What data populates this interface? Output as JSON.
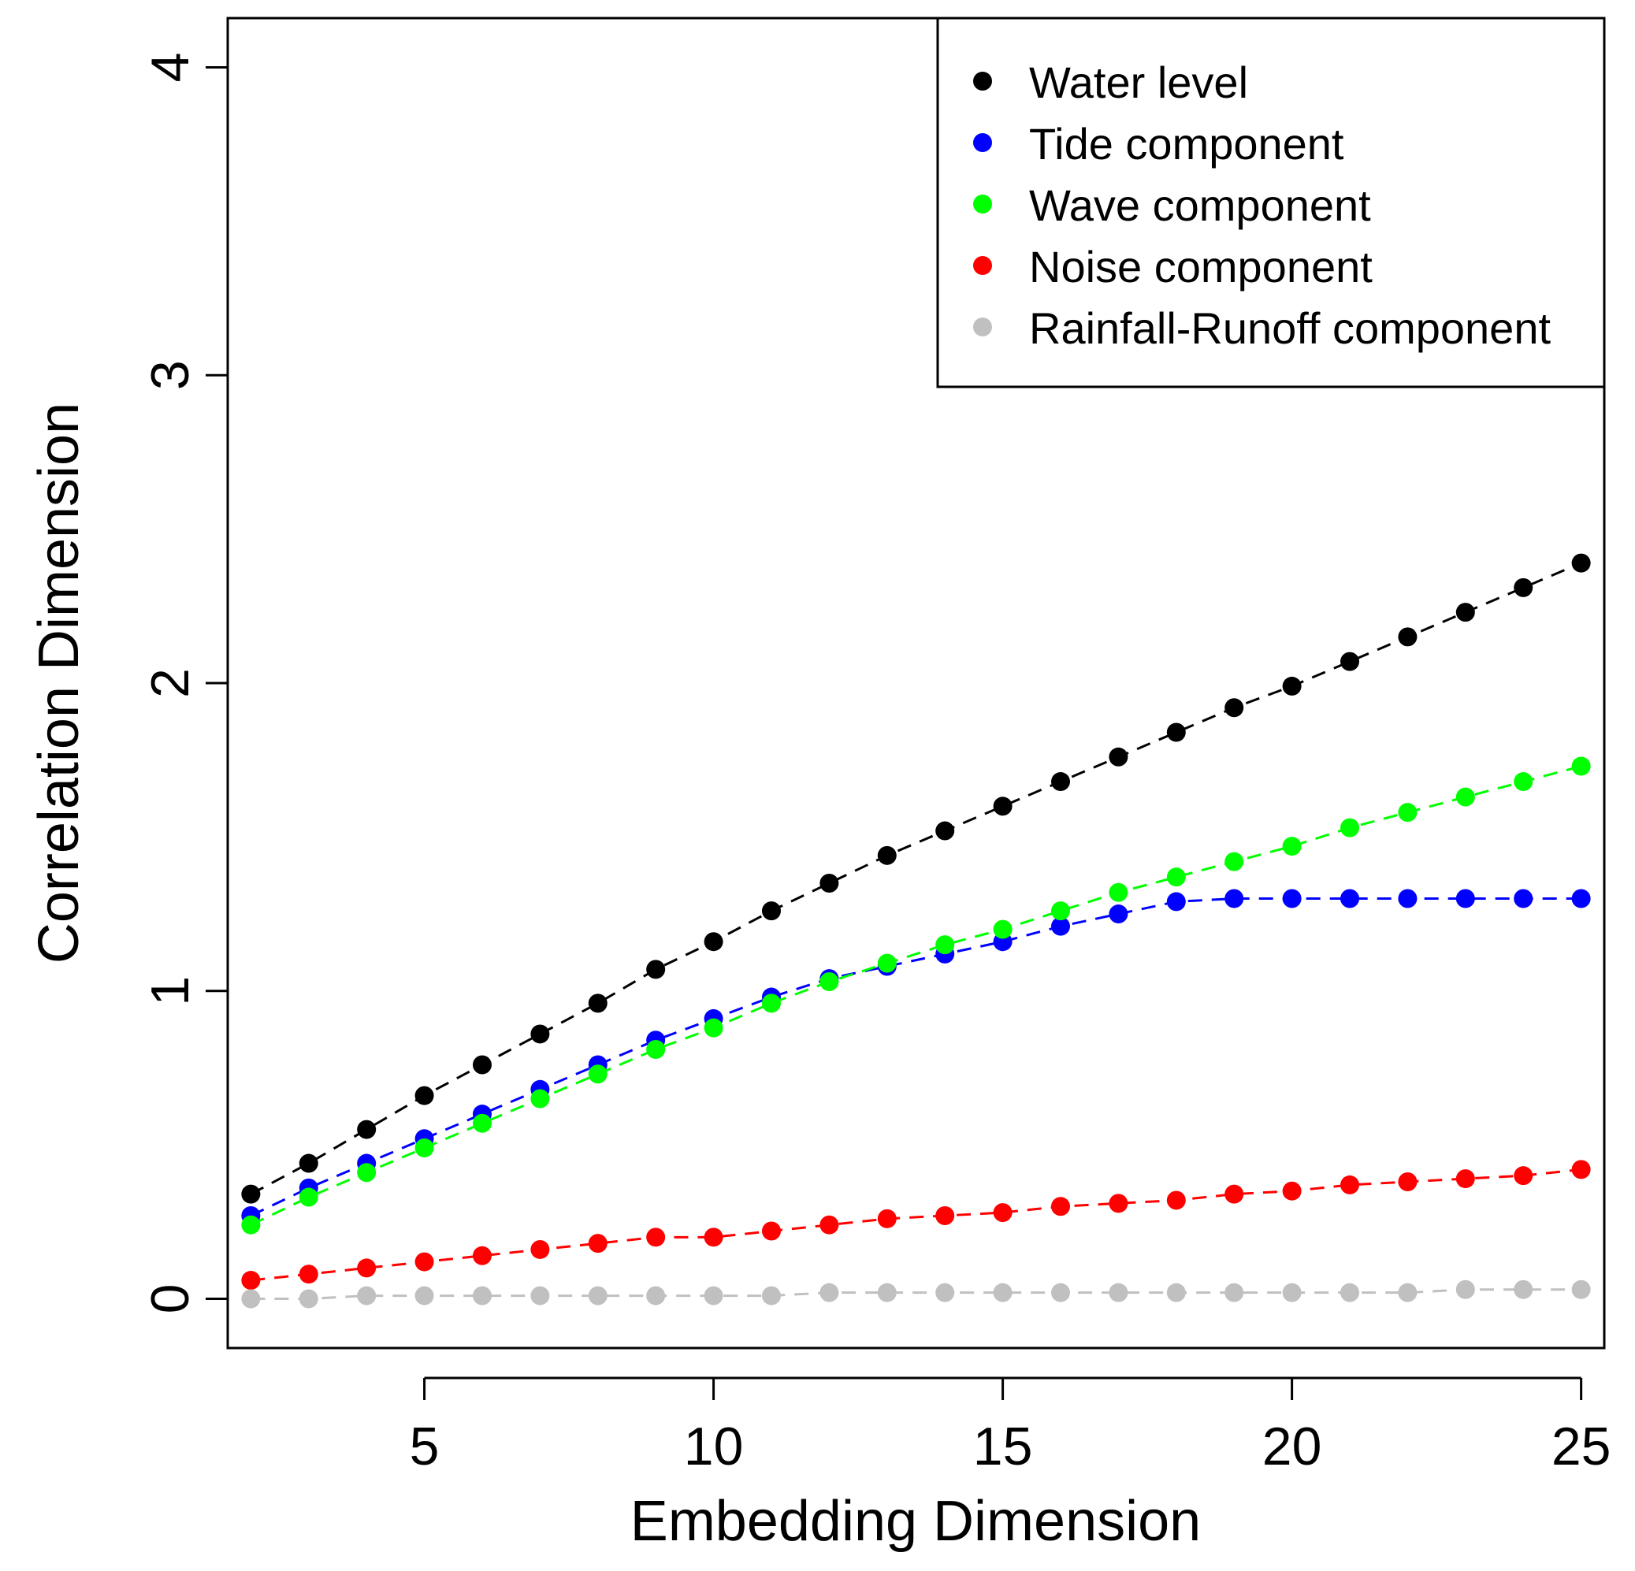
{
  "chart_data": {
    "type": "scatter",
    "title": "",
    "xlabel": "Embedding Dimension",
    "ylabel": "Correlation Dimension",
    "xlim": [
      1.6,
      25.4
    ],
    "ylim": [
      -0.16,
      4.16
    ],
    "xticks": [
      5,
      10,
      15,
      20,
      25
    ],
    "yticks": [
      0,
      1,
      2,
      3,
      4
    ],
    "x": [
      2,
      3,
      4,
      5,
      6,
      7,
      8,
      9,
      10,
      11,
      12,
      13,
      14,
      15,
      16,
      17,
      18,
      19,
      20,
      21,
      22,
      23,
      24,
      25
    ],
    "legend_position": "top-right",
    "line_style": "dashed",
    "series": [
      {
        "name": "Water level",
        "color": "#000000",
        "values": [
          0.34,
          0.44,
          0.55,
          0.66,
          0.76,
          0.86,
          0.96,
          1.07,
          1.16,
          1.26,
          1.35,
          1.44,
          1.52,
          1.6,
          1.68,
          1.76,
          1.84,
          1.92,
          1.99,
          2.07,
          2.15,
          2.23,
          2.31,
          2.39
        ]
      },
      {
        "name": "Tide component",
        "color": "#0000ff",
        "values": [
          0.27,
          0.36,
          0.44,
          0.52,
          0.6,
          0.68,
          0.76,
          0.84,
          0.91,
          0.98,
          1.04,
          1.08,
          1.12,
          1.16,
          1.21,
          1.25,
          1.29,
          1.3,
          1.3,
          1.3,
          1.3,
          1.3,
          1.3,
          1.3
        ]
      },
      {
        "name": "Wave component",
        "color": "#00ff00",
        "values": [
          0.24,
          0.33,
          0.41,
          0.49,
          0.57,
          0.65,
          0.73,
          0.81,
          0.88,
          0.96,
          1.03,
          1.09,
          1.15,
          1.2,
          1.26,
          1.32,
          1.37,
          1.42,
          1.47,
          1.53,
          1.58,
          1.63,
          1.68,
          1.73
        ]
      },
      {
        "name": "Noise component",
        "color": "#ff0000",
        "values": [
          0.06,
          0.08,
          0.1,
          0.12,
          0.14,
          0.16,
          0.18,
          0.2,
          0.2,
          0.22,
          0.24,
          0.26,
          0.27,
          0.28,
          0.3,
          0.31,
          0.32,
          0.34,
          0.35,
          0.37,
          0.38,
          0.39,
          0.4,
          0.42
        ]
      },
      {
        "name": "Rainfall-Runoff component",
        "color": "#c0c0c0",
        "values": [
          0.0,
          0.0,
          0.01,
          0.01,
          0.01,
          0.01,
          0.01,
          0.01,
          0.01,
          0.01,
          0.02,
          0.02,
          0.02,
          0.02,
          0.02,
          0.02,
          0.02,
          0.02,
          0.02,
          0.02,
          0.02,
          0.03,
          0.03,
          0.03
        ]
      }
    ]
  }
}
